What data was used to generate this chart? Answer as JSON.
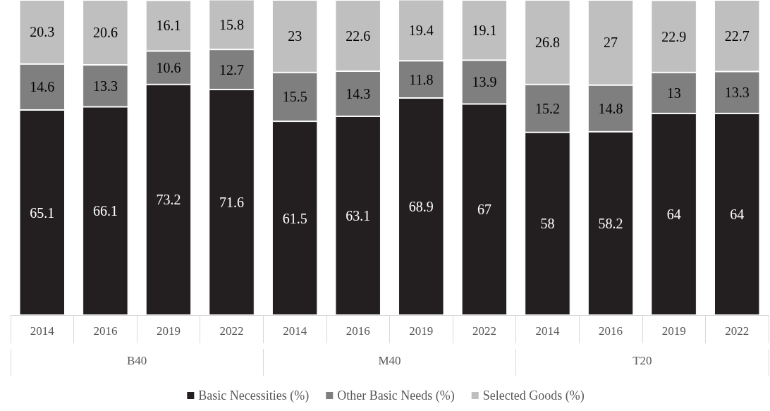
{
  "chart_data": {
    "type": "bar",
    "stacked": true,
    "data_labels": true,
    "legend": "bottom",
    "ylim": [
      0,
      100
    ],
    "categories": [
      "2014",
      "2016",
      "2019",
      "2022",
      "2014",
      "2016",
      "2019",
      "2022",
      "2014",
      "2016",
      "2019",
      "2022"
    ],
    "annotations": [
      "B40",
      "M40",
      "T20"
    ],
    "series": [
      {
        "name": "Basic Necessities (%)",
        "color": "#231f20",
        "values": [
          65.1,
          66.1,
          73.2,
          71.6,
          61.5,
          63.1,
          68.9,
          67,
          58,
          58.2,
          64,
          64
        ]
      },
      {
        "name": "Other Basic Needs (%)",
        "color": "#7f7f7f",
        "values": [
          14.6,
          13.3,
          10.6,
          12.7,
          15.5,
          14.3,
          11.8,
          13.9,
          15.2,
          14.8,
          13,
          13.3
        ]
      },
      {
        "name": "Selected Goods (%)",
        "color": "#bfbfbf",
        "values": [
          20.3,
          20.6,
          16.1,
          15.8,
          23,
          22.6,
          19.4,
          19.1,
          26.8,
          27,
          22.9,
          22.7
        ]
      }
    ]
  }
}
